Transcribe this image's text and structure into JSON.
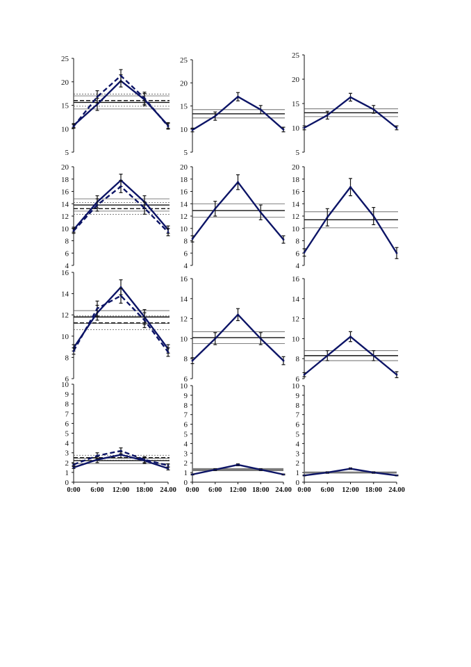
{
  "figure": {
    "rows": 4,
    "cols": 3
  },
  "colors": {
    "series": "#0c1466",
    "reference": "#111111",
    "ci": "#555555",
    "band": "#7a7a7a"
  },
  "chart_data": [
    {
      "type": "line",
      "row": 0,
      "col": 0,
      "x": [
        "0:00",
        "6:00",
        "12:00",
        "18:00",
        "24.00"
      ],
      "ylim": [
        5,
        25
      ],
      "yticks": [
        5,
        10,
        15,
        20,
        25
      ],
      "series": [
        {
          "style": "solid",
          "values": [
            10.7,
            15.2,
            20.2,
            16.2,
            10.7
          ],
          "err": [
            0.4,
            1.3,
            1.3,
            1.3,
            0.6
          ]
        },
        {
          "style": "dashed",
          "values": [
            10.5,
            16.8,
            21.3,
            16.5,
            10.5
          ],
          "err": [
            0.4,
            1.3,
            1.3,
            1.3,
            0.6
          ]
        }
      ],
      "hlines": [
        {
          "y": 15.6,
          "style": "solid"
        },
        {
          "y": 14.2,
          "style": "thin"
        },
        {
          "y": 17.0,
          "style": "thin"
        },
        {
          "y": 16.0,
          "style": "dashed"
        },
        {
          "y": 14.8,
          "style": "dotted"
        },
        {
          "y": 17.4,
          "style": "dotted"
        }
      ]
    },
    {
      "type": "line",
      "row": 0,
      "col": 1,
      "x": [
        "0:00",
        "6:00",
        "12:00",
        "18:00",
        "24.00"
      ],
      "ylim": [
        5,
        25
      ],
      "yticks": [
        5,
        10,
        15,
        20,
        25
      ],
      "series": [
        {
          "style": "solid",
          "values": [
            9.8,
            12.8,
            17.0,
            14.2,
            9.9
          ],
          "err": [
            0.4,
            0.9,
            0.9,
            0.9,
            0.5
          ]
        }
      ],
      "hlines": [
        {
          "y": 13.3,
          "style": "solid"
        },
        {
          "y": 12.4,
          "style": "thin"
        },
        {
          "y": 14.2,
          "style": "thin"
        }
      ]
    },
    {
      "type": "line",
      "row": 0,
      "col": 2,
      "x": [
        "0:00",
        "6:00",
        "12:00",
        "18:00",
        "24.00"
      ],
      "ylim": [
        5,
        25
      ],
      "yticks": [
        5,
        10,
        15,
        20,
        25
      ],
      "series": [
        {
          "style": "solid",
          "values": [
            10.0,
            12.6,
            16.3,
            13.8,
            10.0
          ],
          "err": [
            0.4,
            0.8,
            0.8,
            0.8,
            0.4
          ]
        }
      ],
      "hlines": [
        {
          "y": 13.1,
          "style": "solid"
        },
        {
          "y": 12.3,
          "style": "thin"
        },
        {
          "y": 13.9,
          "style": "thin"
        }
      ]
    },
    {
      "type": "line",
      "row": 1,
      "col": 0,
      "x": [
        "0:00",
        "6:00",
        "12:00",
        "18:00",
        "24.00"
      ],
      "ylim": [
        4,
        20
      ],
      "yticks": [
        4,
        6,
        8,
        10,
        12,
        14,
        16,
        18,
        20
      ],
      "series": [
        {
          "style": "solid",
          "values": [
            9.8,
            14.3,
            17.8,
            14.3,
            9.8
          ],
          "err": [
            0.4,
            1.0,
            1.0,
            1.0,
            0.6
          ]
        },
        {
          "style": "dashed",
          "values": [
            9.6,
            13.8,
            16.8,
            13.3,
            9.4
          ],
          "err": [
            0.4,
            1.0,
            1.0,
            1.0,
            0.6
          ]
        }
      ],
      "hlines": [
        {
          "y": 13.8,
          "style": "solid"
        },
        {
          "y": 12.8,
          "style": "thin"
        },
        {
          "y": 14.8,
          "style": "thin"
        },
        {
          "y": 13.2,
          "style": "dashed"
        },
        {
          "y": 12.3,
          "style": "dotted"
        },
        {
          "y": 14.2,
          "style": "dotted"
        }
      ]
    },
    {
      "type": "line",
      "row": 1,
      "col": 1,
      "x": [
        "0:00",
        "6:00",
        "12:00",
        "18:00",
        "24.00"
      ],
      "ylim": [
        4,
        20
      ],
      "yticks": [
        4,
        6,
        8,
        10,
        12,
        14,
        16,
        18,
        20
      ],
      "series": [
        {
          "style": "solid",
          "values": [
            8.3,
            13.2,
            17.5,
            12.6,
            8.2
          ],
          "err": [
            0.5,
            1.2,
            1.2,
            1.2,
            0.6
          ]
        }
      ],
      "hlines": [
        {
          "y": 12.9,
          "style": "solid"
        },
        {
          "y": 11.8,
          "style": "thin"
        },
        {
          "y": 14.0,
          "style": "thin"
        }
      ]
    },
    {
      "type": "line",
      "row": 1,
      "col": 2,
      "x": [
        "0:00",
        "6:00",
        "12:00",
        "18:00",
        "24.00"
      ],
      "ylim": [
        4,
        20
      ],
      "yticks": [
        4,
        6,
        8,
        10,
        12,
        14,
        16,
        18,
        20
      ],
      "series": [
        {
          "style": "solid",
          "values": [
            6.1,
            11.8,
            16.7,
            12.0,
            6.0
          ],
          "err": [
            0.6,
            1.4,
            1.4,
            1.4,
            0.9
          ]
        }
      ],
      "hlines": [
        {
          "y": 11.4,
          "style": "solid"
        },
        {
          "y": 10.1,
          "style": "thin"
        },
        {
          "y": 12.7,
          "style": "thin"
        }
      ]
    },
    {
      "type": "line",
      "row": 2,
      "col": 0,
      "x": [
        "0:00",
        "6:00",
        "12:00",
        "18:00",
        "24.00"
      ],
      "ylim": [
        6,
        16
      ],
      "yticks": [
        6,
        8,
        10,
        12,
        14,
        16
      ],
      "series": [
        {
          "style": "solid",
          "values": [
            8.9,
            12.2,
            14.6,
            11.8,
            8.8
          ],
          "err": [
            0.3,
            0.7,
            0.7,
            0.7,
            0.4
          ]
        },
        {
          "style": "dashed",
          "values": [
            8.6,
            12.6,
            13.8,
            11.5,
            8.5
          ],
          "err": [
            0.3,
            0.7,
            0.7,
            0.7,
            0.4
          ]
        }
      ],
      "hlines": [
        {
          "y": 11.8,
          "style": "solid"
        },
        {
          "y": 11.2,
          "style": "thin"
        },
        {
          "y": 12.4,
          "style": "thin"
        },
        {
          "y": 11.25,
          "style": "dashed"
        },
        {
          "y": 10.6,
          "style": "dotted"
        },
        {
          "y": 11.9,
          "style": "dotted"
        }
      ]
    },
    {
      "type": "line",
      "row": 2,
      "col": 1,
      "x": [
        "0:00",
        "6:00",
        "12:00",
        "18:00",
        "24.00"
      ],
      "ylim": [
        6,
        16
      ],
      "yticks": [
        6,
        8,
        10,
        12,
        14,
        16
      ],
      "series": [
        {
          "style": "solid",
          "values": [
            7.8,
            10.0,
            12.4,
            10.0,
            7.8
          ],
          "err": [
            0.3,
            0.6,
            0.6,
            0.6,
            0.4
          ]
        }
      ],
      "hlines": [
        {
          "y": 10.1,
          "style": "solid"
        },
        {
          "y": 9.5,
          "style": "thin"
        },
        {
          "y": 10.7,
          "style": "thin"
        }
      ]
    },
    {
      "type": "line",
      "row": 2,
      "col": 2,
      "x": [
        "0:00",
        "6:00",
        "12:00",
        "18:00",
        "24.00"
      ],
      "ylim": [
        6,
        16
      ],
      "yticks": [
        6,
        8,
        10,
        12,
        14,
        16
      ],
      "series": [
        {
          "style": "solid",
          "values": [
            6.4,
            8.3,
            10.2,
            8.3,
            6.4
          ],
          "err": [
            0.2,
            0.5,
            0.5,
            0.5,
            0.3
          ]
        }
      ],
      "hlines": [
        {
          "y": 8.3,
          "style": "solid"
        },
        {
          "y": 7.8,
          "style": "thin"
        },
        {
          "y": 8.8,
          "style": "thin"
        }
      ]
    },
    {
      "type": "line",
      "row": 3,
      "col": 0,
      "x": [
        "0:00",
        "6:00",
        "12:00",
        "18:00",
        "24.00"
      ],
      "ylim": [
        0,
        10
      ],
      "yticks": [
        0,
        1,
        2,
        3,
        4,
        5,
        6,
        7,
        8,
        9,
        10
      ],
      "series": [
        {
          "style": "solid",
          "values": [
            1.5,
            2.3,
            2.8,
            2.2,
            1.4
          ],
          "err": [
            0.1,
            0.3,
            0.3,
            0.3,
            0.15
          ]
        },
        {
          "style": "dashed",
          "values": [
            1.8,
            2.7,
            3.2,
            2.3,
            1.7
          ],
          "err": [
            0.1,
            0.3,
            0.3,
            0.3,
            0.15
          ]
        }
      ],
      "hlines": [
        {
          "y": 2.2,
          "style": "solid"
        },
        {
          "y": 1.9,
          "style": "thin"
        },
        {
          "y": 2.45,
          "style": "thin"
        },
        {
          "y": 2.5,
          "style": "dashed"
        },
        {
          "y": 2.25,
          "style": "dotted"
        },
        {
          "y": 2.75,
          "style": "dotted"
        }
      ]
    },
    {
      "type": "line",
      "row": 3,
      "col": 1,
      "x": [
        "0:00",
        "6:00",
        "12:00",
        "18:00",
        "24.00"
      ],
      "ylim": [
        0,
        10
      ],
      "yticks": [
        0,
        1,
        2,
        3,
        4,
        5,
        6,
        7,
        8,
        9,
        10
      ],
      "series": [
        {
          "style": "solid",
          "values": [
            0.8,
            1.3,
            1.8,
            1.3,
            0.8
          ],
          "err": [
            0.05,
            0.1,
            0.1,
            0.1,
            0.05
          ]
        }
      ],
      "hlines": [
        {
          "y": 1.3,
          "style": "band",
          "range": [
            1.15,
            1.45
          ]
        }
      ]
    },
    {
      "type": "line",
      "row": 3,
      "col": 2,
      "x": [
        "0:00",
        "6:00",
        "12:00",
        "18:00",
        "24.00"
      ],
      "ylim": [
        0,
        10
      ],
      "yticks": [
        0,
        1,
        2,
        3,
        4,
        5,
        6,
        7,
        8,
        9,
        10
      ],
      "series": [
        {
          "style": "solid",
          "values": [
            0.7,
            1.0,
            1.4,
            1.0,
            0.7
          ],
          "err": [
            0.04,
            0.08,
            0.08,
            0.08,
            0.04
          ]
        }
      ],
      "hlines": [
        {
          "y": 1.0,
          "style": "band",
          "range": [
            0.9,
            1.1
          ]
        }
      ]
    }
  ]
}
